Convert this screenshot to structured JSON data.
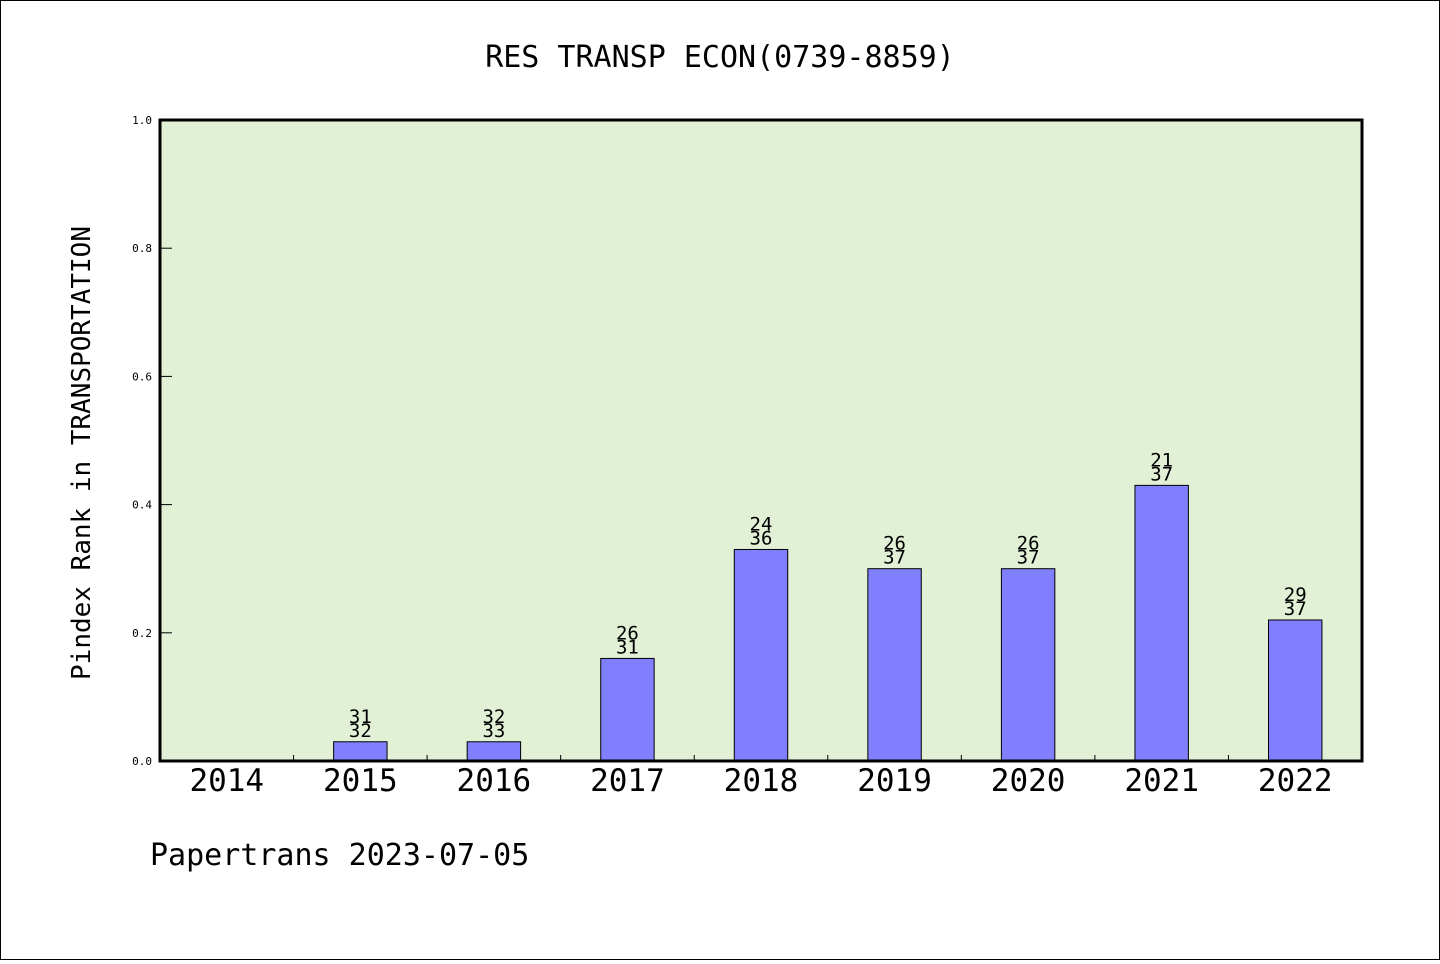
{
  "chart_data": {
    "type": "bar",
    "title": "RES TRANSP ECON(0739-8859)",
    "ylabel": "Pindex Rank in TRANSPORTATION",
    "xlabel": "",
    "ylim": [
      0,
      1
    ],
    "yticks": [
      "0.0",
      "0.2",
      "0.4",
      "0.6",
      "0.8",
      "1.0"
    ],
    "categories": [
      "2014",
      "2015",
      "2016",
      "2017",
      "2018",
      "2019",
      "2020",
      "2021",
      "2022"
    ],
    "values": [
      0,
      0.03,
      0.03,
      0.16,
      0.33,
      0.3,
      0.3,
      0.43,
      0.22
    ],
    "rank_labels": [
      "",
      "31",
      "32",
      "26",
      "24",
      "26",
      "26",
      "21",
      "29"
    ],
    "total_labels": [
      "",
      "32",
      "33",
      "31",
      "36",
      "37",
      "37",
      "37",
      "37"
    ],
    "grid": false,
    "legend": "none",
    "colors": {
      "plot_background": "#e2f0d6",
      "bar_fill": "#8080ff",
      "bar_stroke": "#000000"
    }
  },
  "footer": "Papertrans 2023-07-05"
}
